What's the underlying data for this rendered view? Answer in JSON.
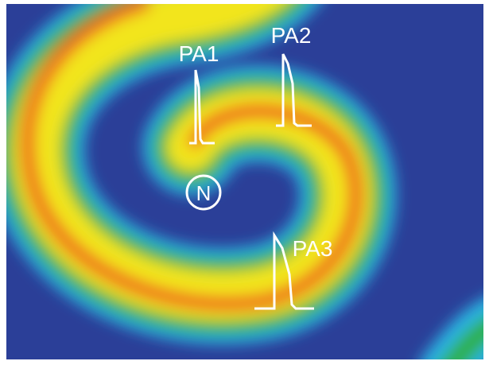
{
  "labels": {
    "pa1": "PA1",
    "pa2": "PA2",
    "pa3": "PA3",
    "n": "N"
  }
}
